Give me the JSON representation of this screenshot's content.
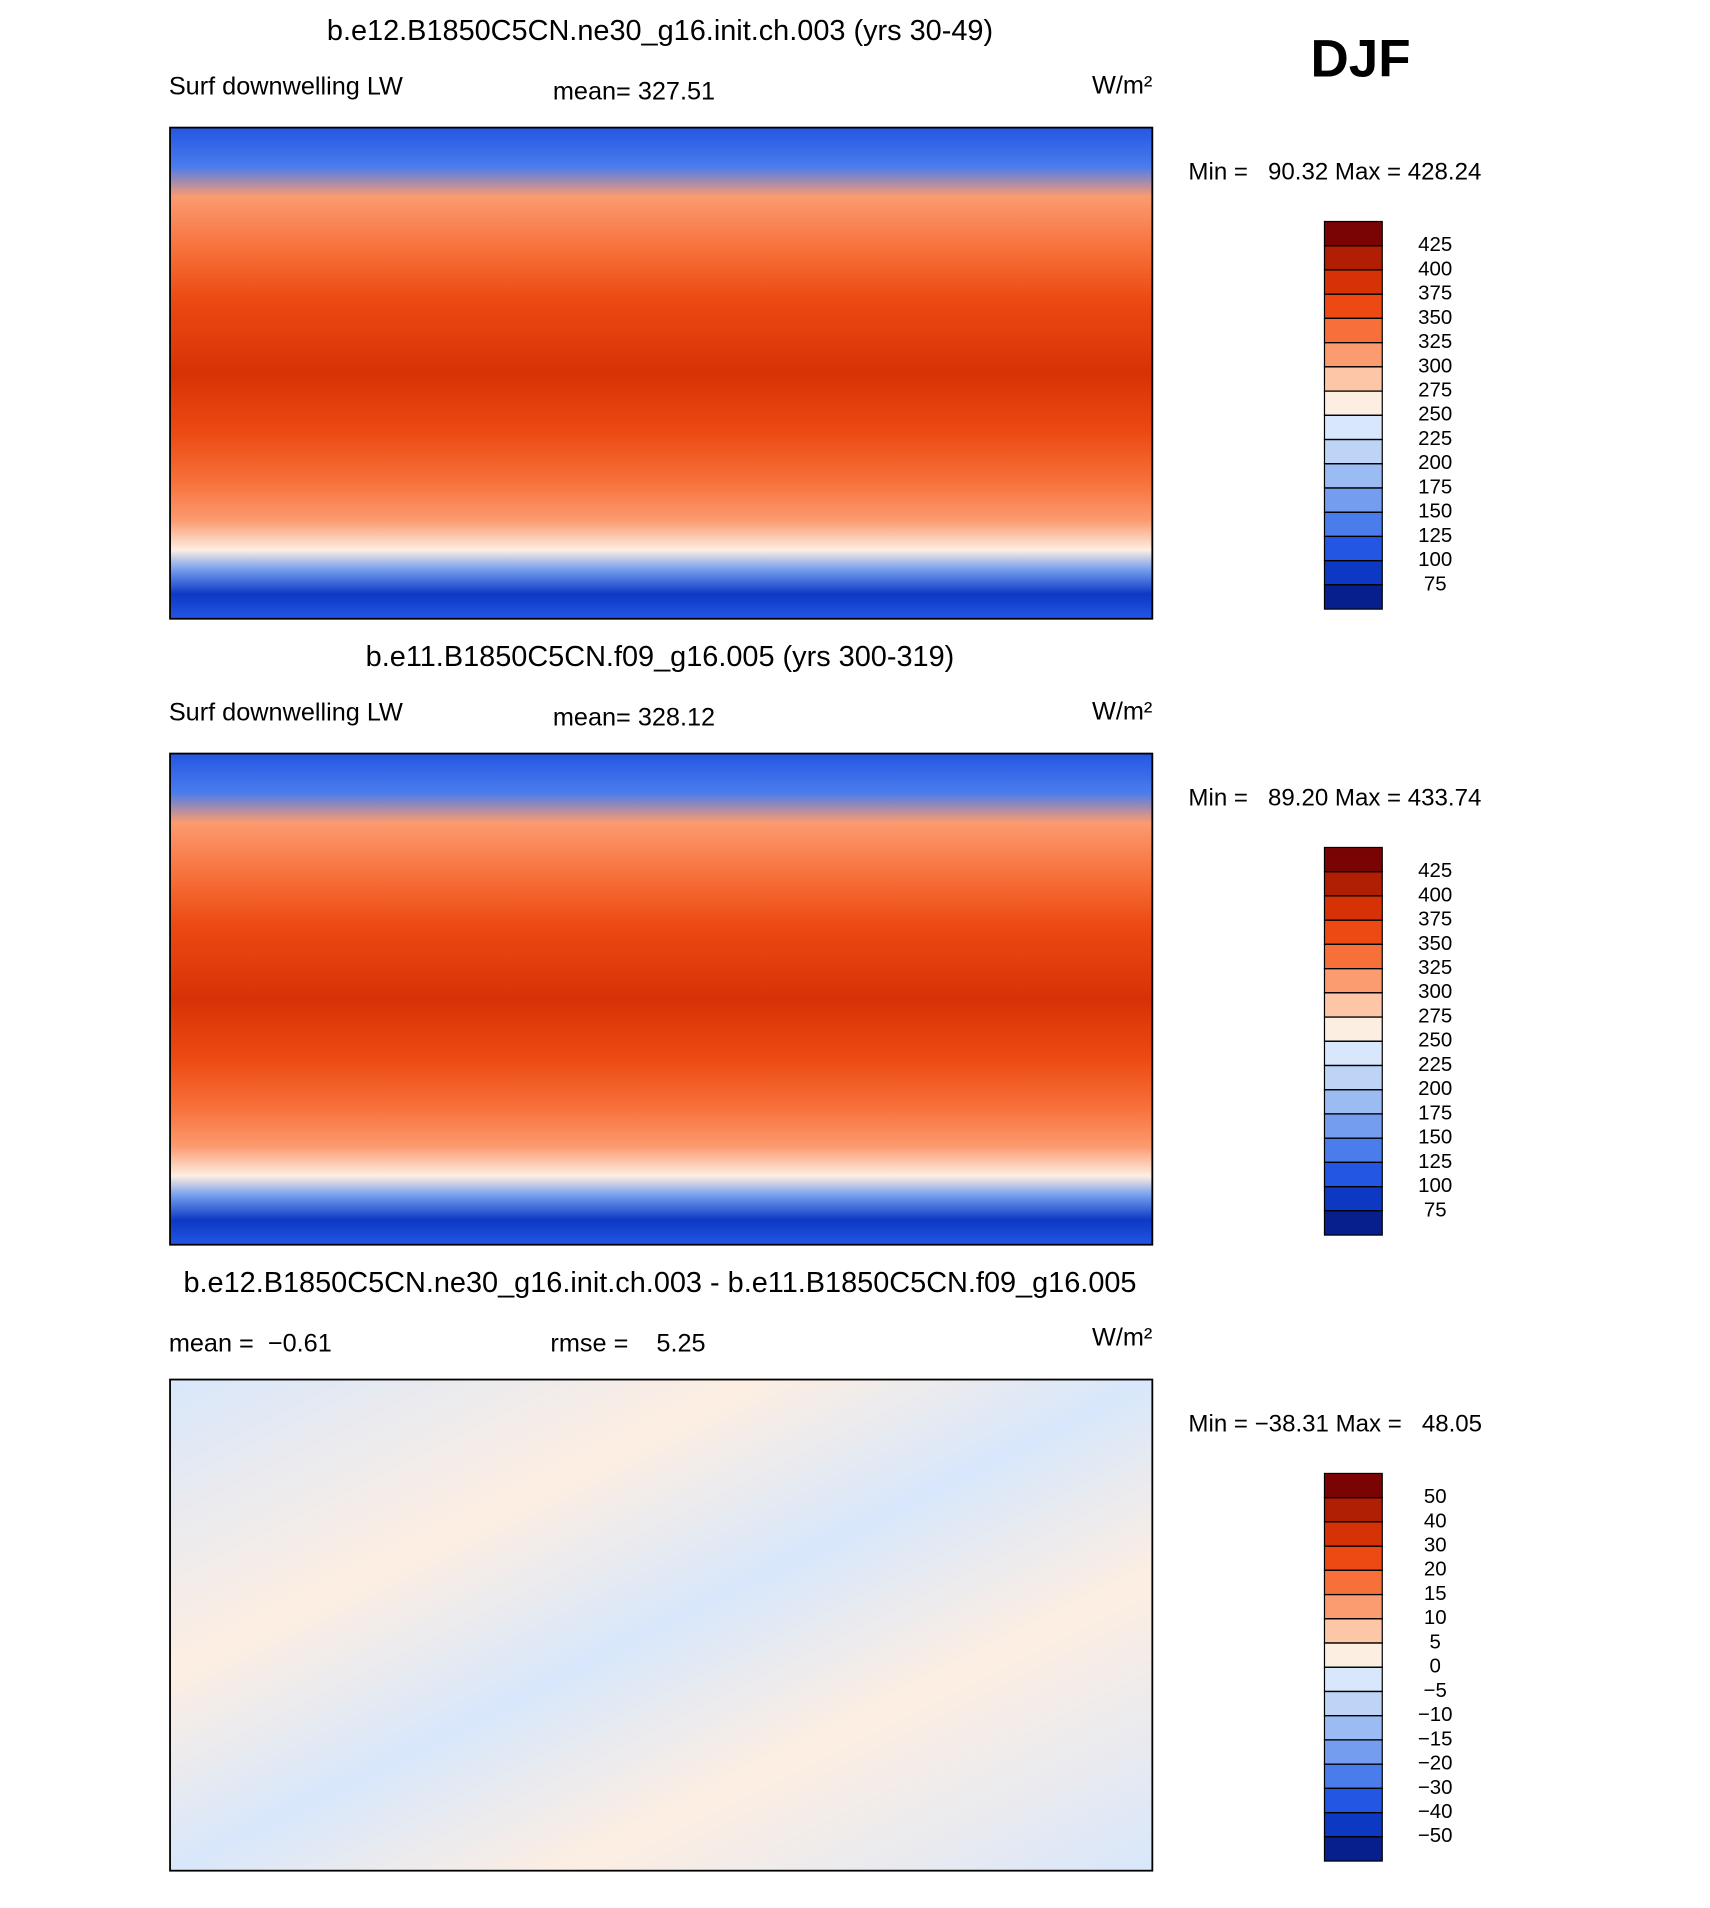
{
  "season": "DJF",
  "panels": [
    {
      "title": "b.e12.B1850C5CN.ne30_g16.init.ch.003 (yrs 30-49)",
      "left_label": "Surf downwelling LW",
      "center_label": "mean= 327.51",
      "units": "W/m²",
      "min_max": "Min =   90.32 Max = 428.24",
      "colorbar": {
        "levels": [
          425,
          400,
          375,
          350,
          325,
          300,
          275,
          250,
          225,
          200,
          175,
          150,
          125,
          100,
          75
        ],
        "colors": [
          "#7a0403",
          "#b01e04",
          "#d53306",
          "#ec4a12",
          "#f7703a",
          "#fb9b70",
          "#fdc6a6",
          "#fdeee2",
          "#d8e7fb",
          "#bdd4f6",
          "#9bbcf2",
          "#759def",
          "#4b7cec",
          "#2456e4",
          "#0c38c4",
          "#071f8c"
        ]
      }
    },
    {
      "title": "b.e11.B1850C5CN.f09_g16.005 (yrs 300-319)",
      "left_label": "Surf downwelling LW",
      "center_label": "mean= 328.12",
      "units": "W/m²",
      "min_max": "Min =   89.20 Max = 433.74",
      "colorbar": {
        "levels": [
          425,
          400,
          375,
          350,
          325,
          300,
          275,
          250,
          225,
          200,
          175,
          150,
          125,
          100,
          75
        ],
        "colors": [
          "#7a0403",
          "#b01e04",
          "#d53306",
          "#ec4a12",
          "#f7703a",
          "#fb9b70",
          "#fdc6a6",
          "#fdeee2",
          "#d8e7fb",
          "#bdd4f6",
          "#9bbcf2",
          "#759def",
          "#4b7cec",
          "#2456e4",
          "#0c38c4",
          "#071f8c"
        ]
      }
    },
    {
      "title": "b.e12.B1850C5CN.ne30_g16.init.ch.003 - b.e11.B1850C5CN.f09_g16.005",
      "left_label": "mean =  −0.61",
      "center_label": "rmse =    5.25",
      "units": "W/m²",
      "min_max": "Min = −38.31 Max =   48.05",
      "colorbar": {
        "levels": [
          50,
          40,
          30,
          20,
          15,
          10,
          5,
          0,
          {
            "value": -5,
            "label": "−5"
          },
          {
            "value": -10,
            "label": "−10"
          },
          {
            "value": -15,
            "label": "−15"
          },
          {
            "value": -20,
            "label": "−20"
          },
          {
            "value": -30,
            "label": "−30"
          },
          {
            "value": -40,
            "label": "−40"
          },
          {
            "value": -50,
            "label": "−50"
          }
        ],
        "colors": [
          "#7a0403",
          "#b01e04",
          "#d53306",
          "#ec4a12",
          "#f7703a",
          "#fb9b70",
          "#fdc6a6",
          "#fdeee2",
          "#d8e7fb",
          "#bdd4f6",
          "#9bbcf2",
          "#759def",
          "#4b7cec",
          "#2456e4",
          "#0c38c4",
          "#071f8c"
        ]
      }
    }
  ]
}
